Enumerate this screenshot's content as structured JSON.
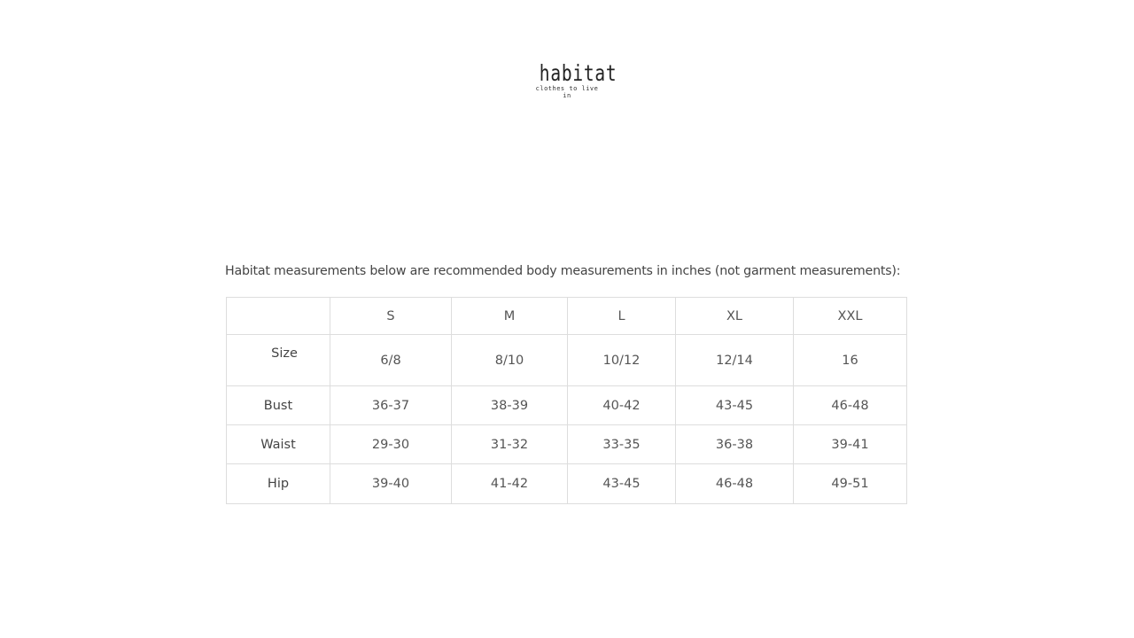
{
  "logo": {
    "name": "habitat",
    "tagline": "clothes to live in"
  },
  "intro": "Habitat measurements below are recommended body measurements in inches (not garment measurements):",
  "table": {
    "header": [
      "",
      "S",
      "M",
      "L",
      "XL",
      "XXL"
    ],
    "rows": [
      {
        "label": "Size",
        "values": [
          "6/8",
          "8/10",
          "10/12",
          "12/14",
          "16"
        ]
      },
      {
        "label": "Bust",
        "values": [
          "36-37",
          "38-39",
          "40-42",
          "43-45",
          "46-48"
        ]
      },
      {
        "label": "Waist",
        "values": [
          "29-30",
          "31-32",
          "33-35",
          "36-38",
          "39-41"
        ]
      },
      {
        "label": "Hip",
        "values": [
          "39-40",
          "41-42",
          "43-45",
          "46-48",
          "49-51"
        ]
      }
    ]
  }
}
